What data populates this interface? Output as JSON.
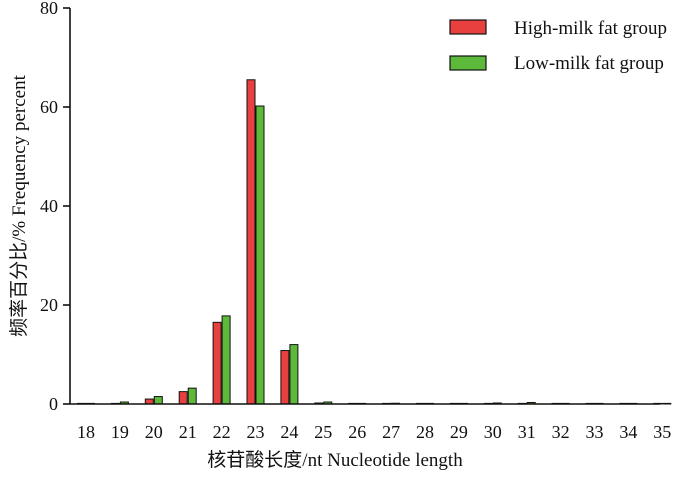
{
  "chart_data": {
    "type": "bar",
    "categories": [
      "18",
      "19",
      "20",
      "21",
      "22",
      "23",
      "24",
      "25",
      "26",
      "27",
      "28",
      "29",
      "30",
      "31",
      "32",
      "33",
      "34",
      "35"
    ],
    "series": [
      {
        "name": "High-milk fat group",
        "color": "#e8403f",
        "values": [
          0.05,
          0.1,
          1.0,
          2.5,
          16.5,
          65.5,
          10.8,
          0.2,
          0.05,
          0.05,
          0.05,
          0.05,
          0.1,
          0.1,
          0.05,
          0.02,
          0.02,
          0.02
        ]
      },
      {
        "name": "Low-milk fat group",
        "color": "#5cb93a",
        "values": [
          0.1,
          0.4,
          1.5,
          3.2,
          17.8,
          60.2,
          12.0,
          0.4,
          0.1,
          0.15,
          0.1,
          0.1,
          0.2,
          0.3,
          0.1,
          0.05,
          0.05,
          0.05
        ]
      }
    ],
    "ylim": [
      0,
      80
    ],
    "yticks": [
      "0",
      "20",
      "40",
      "60",
      "80"
    ],
    "xlabel": "核苷酸长度/nt   Nucleotide length",
    "ylabel": "频率百分比/%    Frequency percent",
    "legend_position": "top-right",
    "grid": false
  }
}
